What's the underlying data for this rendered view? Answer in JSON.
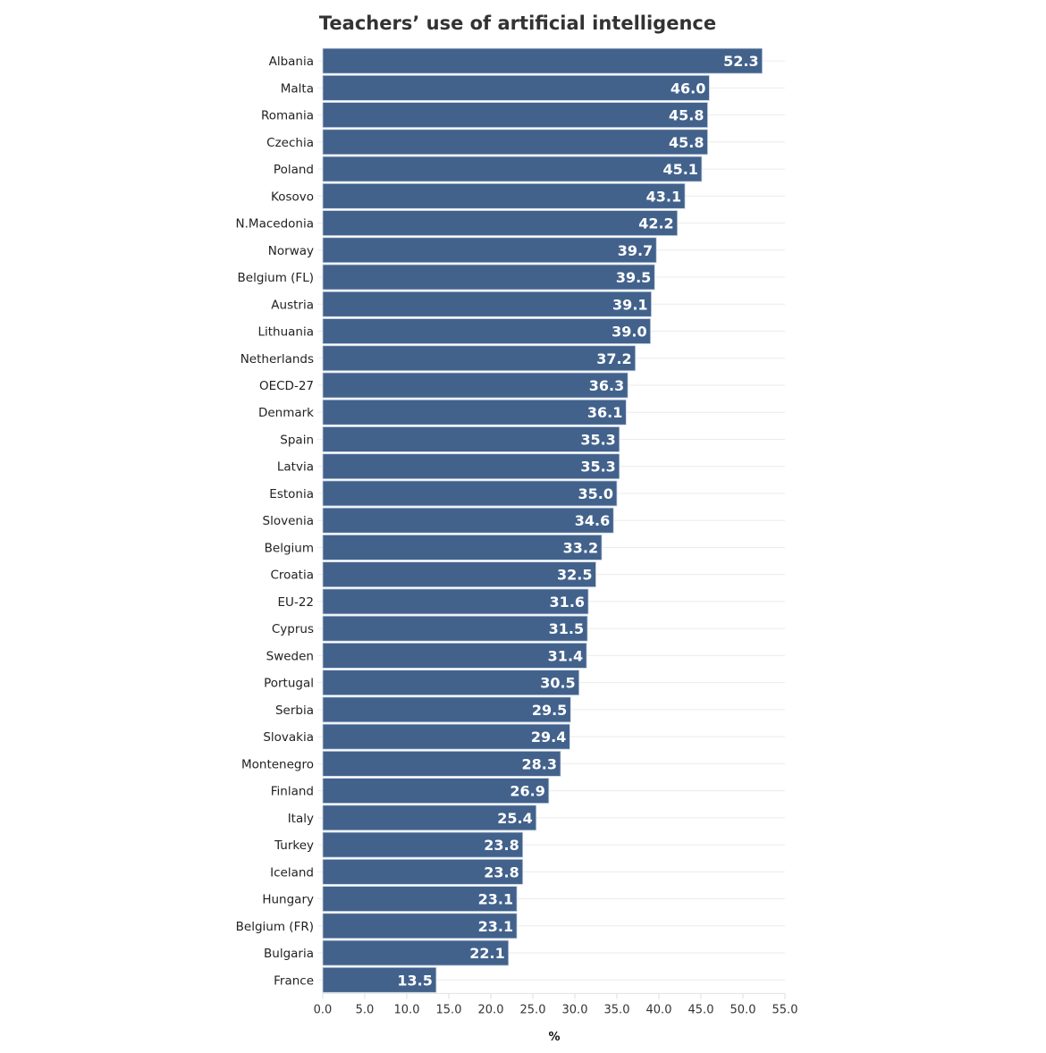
{
  "chart_data": {
    "type": "bar",
    "orientation": "horizontal",
    "title": "Teachers’ use of artificial intelligence",
    "xlabel": "%",
    "ylabel": "",
    "xlim": [
      0,
      55
    ],
    "xticks": [
      "0.0",
      "5.0",
      "10.0",
      "15.0",
      "20.0",
      "25.0",
      "30.0",
      "35.0",
      "40.0",
      "45.0",
      "50.0",
      "55.0"
    ],
    "grid": "horizontal",
    "bar_color": "#42628c",
    "categories": [
      "Albania",
      "Malta",
      "Romania",
      "Czechia",
      "Poland",
      "Kosovo",
      "N.Macedonia",
      "Norway",
      "Belgium (FL)",
      "Austria",
      "Lithuania",
      "Netherlands",
      "OECD-27",
      "Denmark",
      "Spain",
      "Latvia",
      "Estonia",
      "Slovenia",
      "Belgium",
      "Croatia",
      "EU-22",
      "Cyprus",
      "Sweden",
      "Portugal",
      "Serbia",
      "Slovakia",
      "Montenegro",
      "Finland",
      "Italy",
      "Turkey",
      "Iceland",
      "Hungary",
      "Belgium (FR)",
      "Bulgaria",
      "France"
    ],
    "values": [
      52.3,
      46.0,
      45.8,
      45.8,
      45.1,
      43.1,
      42.2,
      39.7,
      39.5,
      39.1,
      39.0,
      37.2,
      36.3,
      36.1,
      35.3,
      35.3,
      35.0,
      34.6,
      33.2,
      32.5,
      31.6,
      31.5,
      31.4,
      30.5,
      29.5,
      29.4,
      28.3,
      26.9,
      25.4,
      23.8,
      23.8,
      23.1,
      23.1,
      22.1,
      13.5
    ]
  }
}
